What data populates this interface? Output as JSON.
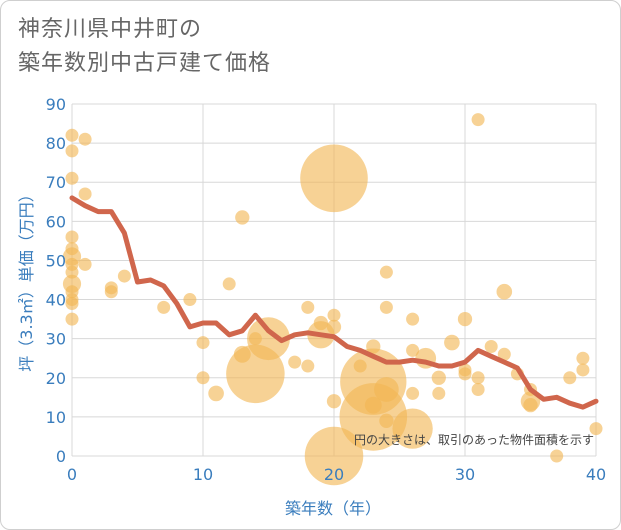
{
  "chart_data": {
    "type": "scatter",
    "title_lines": [
      "神奈川県中井町の",
      "築年数別中古戸建て価格"
    ],
    "xlabel": "築年数（年）",
    "ylabel": "坪（3.3㎡）単価（万円）",
    "xlim": [
      0,
      40
    ],
    "ylim": [
      0,
      90
    ],
    "x_ticks": [
      "0",
      "10",
      "20",
      "30",
      "40"
    ],
    "y_ticks": [
      "0",
      "10",
      "20",
      "30",
      "40",
      "50",
      "60",
      "70",
      "80",
      "90"
    ],
    "grid": true,
    "note": "円の大きさは、取引のあった物件面積を示す",
    "colors": {
      "bubble": "#f2b654",
      "line": "#d0664c",
      "axis_text": "#3a7dbd",
      "grid": "#d8d8d8"
    },
    "bubbles": [
      {
        "x": 0,
        "y": 82,
        "size": 1
      },
      {
        "x": 0,
        "y": 78,
        "size": 1
      },
      {
        "x": 0,
        "y": 71,
        "size": 1
      },
      {
        "x": 0,
        "y": 56,
        "size": 1
      },
      {
        "x": 0,
        "y": 53,
        "size": 1
      },
      {
        "x": 0,
        "y": 51,
        "size": 1.4
      },
      {
        "x": 0,
        "y": 49,
        "size": 1
      },
      {
        "x": 0,
        "y": 47,
        "size": 1
      },
      {
        "x": 0,
        "y": 44,
        "size": 1.4
      },
      {
        "x": 0,
        "y": 42,
        "size": 1
      },
      {
        "x": 0,
        "y": 40,
        "size": 1
      },
      {
        "x": 0,
        "y": 39,
        "size": 1
      },
      {
        "x": 0,
        "y": 35,
        "size": 1
      },
      {
        "x": 1,
        "y": 81,
        "size": 1
      },
      {
        "x": 1,
        "y": 67,
        "size": 1
      },
      {
        "x": 1,
        "y": 49,
        "size": 1
      },
      {
        "x": 3,
        "y": 43,
        "size": 1
      },
      {
        "x": 3,
        "y": 42,
        "size": 1
      },
      {
        "x": 4,
        "y": 46,
        "size": 1
      },
      {
        "x": 7,
        "y": 38,
        "size": 1
      },
      {
        "x": 9,
        "y": 40,
        "size": 1
      },
      {
        "x": 10,
        "y": 29,
        "size": 1
      },
      {
        "x": 10,
        "y": 20,
        "size": 1
      },
      {
        "x": 11,
        "y": 16,
        "size": 1.2
      },
      {
        "x": 12,
        "y": 44,
        "size": 1
      },
      {
        "x": 13,
        "y": 61,
        "size": 1.1
      },
      {
        "x": 13,
        "y": 26,
        "size": 1.3
      },
      {
        "x": 14,
        "y": 21,
        "size": 4.5
      },
      {
        "x": 14,
        "y": 30,
        "size": 1
      },
      {
        "x": 15,
        "y": 30,
        "size": 3.3
      },
      {
        "x": 17,
        "y": 24,
        "size": 1
      },
      {
        "x": 18,
        "y": 38,
        "size": 1
      },
      {
        "x": 18,
        "y": 23,
        "size": 1
      },
      {
        "x": 19,
        "y": 34,
        "size": 1.1
      },
      {
        "x": 19,
        "y": 31,
        "size": 2.1
      },
      {
        "x": 20,
        "y": 71,
        "size": 5.2
      },
      {
        "x": 20,
        "y": 36,
        "size": 1
      },
      {
        "x": 20,
        "y": 33,
        "size": 1.1
      },
      {
        "x": 20,
        "y": 14,
        "size": 1.1
      },
      {
        "x": 20,
        "y": 0,
        "size": 4.5
      },
      {
        "x": 22,
        "y": 23,
        "size": 1
      },
      {
        "x": 23,
        "y": 28,
        "size": 1.1
      },
      {
        "x": 23,
        "y": 19,
        "size": 5.1
      },
      {
        "x": 23,
        "y": 13,
        "size": 1.3
      },
      {
        "x": 23,
        "y": 10,
        "size": 5.2
      },
      {
        "x": 24,
        "y": 47,
        "size": 1
      },
      {
        "x": 24,
        "y": 38,
        "size": 1
      },
      {
        "x": 24,
        "y": 17,
        "size": 1.9
      },
      {
        "x": 24,
        "y": 9,
        "size": 1.1
      },
      {
        "x": 26,
        "y": 35,
        "size": 1
      },
      {
        "x": 26,
        "y": 27,
        "size": 1
      },
      {
        "x": 26,
        "y": 16,
        "size": 1
      },
      {
        "x": 26,
        "y": 7,
        "size": 3.1
      },
      {
        "x": 27,
        "y": 25,
        "size": 1.6
      },
      {
        "x": 28,
        "y": 20,
        "size": 1.1
      },
      {
        "x": 28,
        "y": 16,
        "size": 1
      },
      {
        "x": 29,
        "y": 29,
        "size": 1.2
      },
      {
        "x": 30,
        "y": 35,
        "size": 1.1
      },
      {
        "x": 30,
        "y": 22,
        "size": 1
      },
      {
        "x": 30,
        "y": 21,
        "size": 1
      },
      {
        "x": 31,
        "y": 86,
        "size": 1
      },
      {
        "x": 31,
        "y": 20,
        "size": 1
      },
      {
        "x": 31,
        "y": 17,
        "size": 1
      },
      {
        "x": 32,
        "y": 28,
        "size": 1
      },
      {
        "x": 33,
        "y": 42,
        "size": 1.2
      },
      {
        "x": 33,
        "y": 26,
        "size": 1
      },
      {
        "x": 34,
        "y": 21,
        "size": 1
      },
      {
        "x": 35,
        "y": 17,
        "size": 1
      },
      {
        "x": 35,
        "y": 14,
        "size": 1.5
      },
      {
        "x": 35,
        "y": 13,
        "size": 1.1
      },
      {
        "x": 37,
        "y": 0,
        "size": 1
      },
      {
        "x": 38,
        "y": 20,
        "size": 1
      },
      {
        "x": 39,
        "y": 25,
        "size": 1
      },
      {
        "x": 39,
        "y": 22,
        "size": 1
      },
      {
        "x": 40,
        "y": 7,
        "size": 1
      }
    ],
    "trend": {
      "x": [
        0,
        1,
        2,
        3,
        4,
        5,
        6,
        7,
        8,
        9,
        10,
        11,
        12,
        13,
        14,
        15,
        16,
        17,
        18,
        19,
        20,
        21,
        22,
        23,
        24,
        25,
        26,
        27,
        28,
        29,
        30,
        31,
        32,
        33,
        34,
        35,
        36,
        37,
        38,
        39,
        40
      ],
      "y": [
        66,
        64,
        62.5,
        62.5,
        57,
        44.5,
        45,
        43.5,
        39,
        33,
        34,
        34,
        31,
        32,
        36,
        32,
        29.5,
        31,
        31.5,
        31,
        30.5,
        28,
        27,
        25.5,
        24,
        24,
        24.5,
        24,
        23,
        23,
        24,
        27,
        25.5,
        24,
        22.5,
        17,
        14.5,
        15,
        13.5,
        12.5,
        14
      ]
    }
  }
}
